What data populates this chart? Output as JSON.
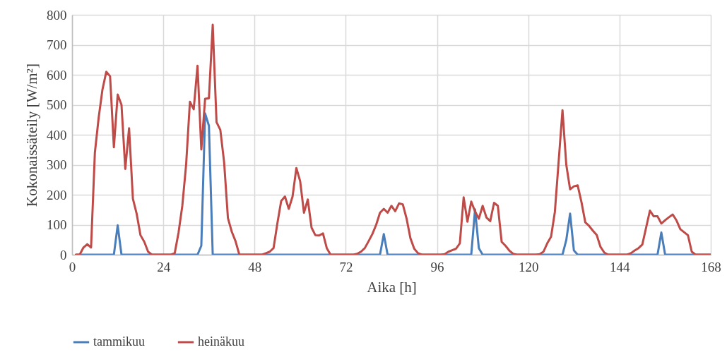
{
  "chart_data": {
    "type": "line",
    "xlabel": "Aika [h]",
    "ylabel": "Kokonaissäteily [W/m²]",
    "xlim": [
      0,
      168
    ],
    "xticks": [
      0,
      24,
      48,
      72,
      96,
      120,
      144,
      168
    ],
    "ylim": [
      0,
      800
    ],
    "yticks": [
      0,
      100,
      200,
      300,
      400,
      500,
      600,
      700,
      800
    ],
    "grid": true,
    "legend": "bottom",
    "marker": "none",
    "line_style": "solid",
    "series": [
      {
        "name": "tammikuu",
        "color": "#4a7ebb",
        "x": [
          1,
          11,
          12,
          13,
          33,
          34,
          35,
          36,
          37,
          81,
          82,
          83,
          105,
          106,
          107,
          108,
          129,
          130,
          131,
          132,
          133,
          154,
          155,
          156,
          168
        ],
        "values": [
          0,
          0,
          98,
          0,
          0,
          30,
          471,
          430,
          0,
          0,
          69,
          0,
          0,
          151,
          22,
          0,
          0,
          49,
          137,
          14,
          0,
          0,
          74,
          0,
          0
        ]
      },
      {
        "name": "heinäkuu",
        "color": "#be4b48",
        "x": [
          1,
          2,
          3,
          4,
          5,
          6,
          7,
          8,
          9,
          10,
          11,
          12,
          13,
          14,
          15,
          16,
          17,
          18,
          19,
          20,
          21,
          26,
          27,
          28,
          29,
          30,
          31,
          32,
          33,
          34,
          35,
          36,
          37,
          38,
          39,
          40,
          41,
          42,
          43,
          44,
          50,
          51,
          52,
          53,
          54,
          55,
          56,
          57,
          58,
          59,
          60,
          61,
          62,
          63,
          64,
          65,
          66,
          67,
          68,
          74,
          75,
          76,
          77,
          78,
          79,
          80,
          81,
          82,
          83,
          84,
          85,
          86,
          87,
          88,
          89,
          90,
          91,
          92,
          97,
          98,
          99,
          100,
          101,
          102,
          103,
          104,
          105,
          106,
          107,
          108,
          109,
          110,
          111,
          112,
          113,
          114,
          115,
          116,
          117,
          122,
          123,
          124,
          125,
          126,
          127,
          129,
          130,
          131,
          132,
          133,
          134,
          135,
          136,
          137,
          138,
          139,
          140,
          141,
          146,
          147,
          148,
          149,
          150,
          152,
          153,
          154,
          155,
          156,
          157,
          158,
          159,
          160,
          161,
          162,
          163,
          164,
          168
        ],
        "values": [
          0,
          0,
          24,
          35,
          24,
          340,
          457,
          551,
          610,
          595,
          358,
          534,
          500,
          286,
          422,
          187,
          136,
          65,
          43,
          10,
          0,
          0,
          5,
          73,
          163,
          300,
          510,
          485,
          630,
          351,
          520,
          522,
          767,
          442,
          416,
          308,
          122,
          77,
          45,
          0,
          0,
          5,
          10,
          22,
          104,
          179,
          194,
          153,
          194,
          289,
          245,
          140,
          184,
          90,
          65,
          64,
          71,
          22,
          0,
          0,
          3,
          10,
          22,
          45,
          69,
          100,
          140,
          153,
          140,
          163,
          145,
          171,
          168,
          120,
          55,
          20,
          5,
          0,
          0,
          2,
          10,
          15,
          20,
          38,
          191,
          110,
          177,
          144,
          120,
          163,
          124,
          112,
          173,
          163,
          43,
          30,
          14,
          3,
          0,
          0,
          2,
          10,
          38,
          60,
          143,
          482,
          300,
          218,
          228,
          231,
          175,
          108,
          96,
          80,
          66,
          26,
          7,
          0,
          0,
          5,
          14,
          22,
          34,
          147,
          128,
          128,
          104,
          115,
          125,
          134,
          114,
          85,
          75,
          65,
          10,
          0,
          0
        ]
      }
    ]
  }
}
